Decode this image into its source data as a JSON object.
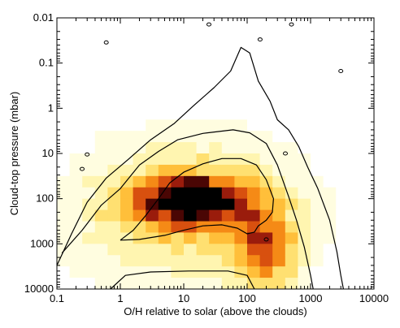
{
  "chart_data": {
    "type": "heatmap",
    "title": "",
    "xlabel": "O/H relative to solar (above the clouds)",
    "ylabel": "Cloud-top pressure (mbar)",
    "x_scale": "log",
    "y_scale": "log",
    "y_inverted": true,
    "xlim": [
      0.1,
      10000
    ],
    "ylim": [
      0.01,
      10000
    ],
    "x_ticks": [
      0.1,
      1,
      10,
      100,
      1000,
      10000
    ],
    "x_tick_labels": [
      "0.1",
      "1",
      "10",
      "100",
      "1000",
      "10000"
    ],
    "y_ticks": [
      0.01,
      0.1,
      1,
      10,
      100,
      1000,
      10000
    ],
    "y_tick_labels": [
      "0.01",
      "0.1",
      "1",
      "10",
      "100",
      "1000",
      "10000"
    ],
    "grid": false,
    "legend": "none",
    "colormap": [
      "#ffffff",
      "#fffde0",
      "#fff5b0",
      "#ffe071",
      "#ffbf3a",
      "#f58a16",
      "#d8500f",
      "#9a1c0c",
      "#4a0604",
      "#000000"
    ],
    "density_peak": {
      "x": 12,
      "y": 100
    },
    "density_bins_per_decade_x": 5,
    "density_bins_per_decade_y": 4,
    "contours": [
      {
        "level": "outer",
        "points": [
          [
            0.1,
            3000
          ],
          [
            0.17,
            600
          ],
          [
            0.3,
            120
          ],
          [
            0.6,
            35
          ],
          [
            1.3,
            14
          ],
          [
            3,
            5
          ],
          [
            7,
            2.2
          ],
          [
            14,
            0.9
          ],
          [
            30,
            0.35
          ],
          [
            55,
            0.15
          ],
          [
            80,
            0.045
          ],
          [
            110,
            0.06
          ],
          [
            150,
            0.25
          ],
          [
            230,
            0.7
          ],
          [
            300,
            1.8
          ],
          [
            450,
            3
          ],
          [
            650,
            7
          ],
          [
            900,
            20
          ],
          [
            1300,
            60
          ],
          [
            2000,
            300
          ],
          [
            2600,
            1500
          ],
          [
            3000,
            5000
          ],
          [
            3300,
            10000
          ]
        ]
      },
      {
        "level": "middle",
        "points": [
          [
            0.12,
            1600
          ],
          [
            0.25,
            500
          ],
          [
            0.5,
            140
          ],
          [
            1,
            60
          ],
          [
            2,
            18
          ],
          [
            4,
            9
          ],
          [
            8,
            5
          ],
          [
            20,
            3.6
          ],
          [
            60,
            3
          ],
          [
            110,
            3.5
          ],
          [
            200,
            6
          ],
          [
            300,
            18
          ],
          [
            450,
            90
          ],
          [
            600,
            300
          ],
          [
            800,
            1200
          ],
          [
            1000,
            5000
          ],
          [
            1100,
            10000
          ]
        ]
      },
      {
        "level": "inner",
        "points": [
          [
            1,
            830
          ],
          [
            1.6,
            500
          ],
          [
            2.5,
            240
          ],
          [
            4,
            100
          ],
          [
            6,
            45
          ],
          [
            10,
            26
          ],
          [
            20,
            17
          ],
          [
            40,
            13
          ],
          [
            80,
            13
          ],
          [
            140,
            18
          ],
          [
            200,
            38
          ],
          [
            260,
            100
          ],
          [
            250,
            200
          ],
          [
            200,
            300
          ],
          [
            150,
            400
          ],
          [
            130,
            550
          ],
          [
            100,
            600
          ],
          [
            70,
            450
          ],
          [
            40,
            380
          ],
          [
            20,
            400
          ],
          [
            10,
            500
          ],
          [
            5,
            650
          ],
          [
            2,
            800
          ],
          [
            1,
            830
          ]
        ]
      },
      {
        "level": "lower",
        "points": [
          [
            0.7,
            10000
          ],
          [
            1.2,
            5000
          ],
          [
            3,
            4200
          ],
          [
            12,
            4000
          ],
          [
            50,
            4000
          ],
          [
            100,
            5000
          ],
          [
            130,
            10000
          ]
        ]
      },
      {
        "level": "islands",
        "points": [
          [
            0.6,
            0.035
          ],
          [
            0.3,
            10.5
          ],
          [
            0.25,
            22
          ],
          [
            400,
            10
          ],
          [
            3000,
            0.15
          ],
          [
            25,
            0.014
          ],
          [
            160,
            0.03
          ],
          [
            200,
            800
          ],
          [
            500,
            0.014
          ]
        ]
      }
    ]
  }
}
